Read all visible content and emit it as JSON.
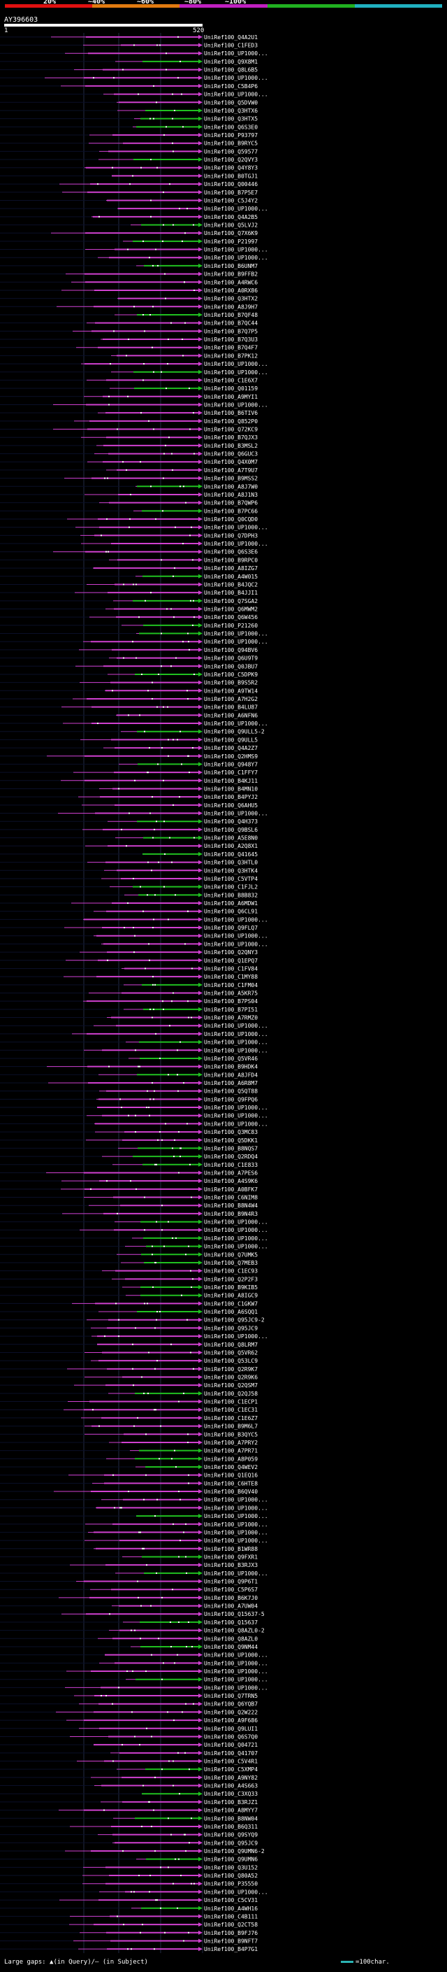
{
  "header": {
    "scale_ticks": [
      "20%",
      "~40%",
      "~60%",
      "~80%",
      "~100%"
    ],
    "scale_colors": [
      "#e01010",
      "#e07a10",
      "#c020c0",
      "#20b020",
      "#20b0c0"
    ],
    "query_name": "AY396603",
    "query_start": "1",
    "query_end": "520"
  },
  "hit_colors": {
    "high": "#20c020",
    "low": "#d040d0"
  },
  "hits": [
    "UniRef100_Q4A2U1",
    "UniRef100_C1FED3",
    "UniRef100_UP1000...",
    "UniRef100_Q9X8M1",
    "UniRef100_Q8L6B5",
    "UniRef100_UP1000...",
    "UniRef100_C5B4P6",
    "UniRef100_UP1000...",
    "UniRef100_Q5DVW0",
    "UniRef100_Q3HTX6",
    "UniRef100_Q3HTX5",
    "UniRef100_Q6S3E0",
    "UniRef100_P93797",
    "UniRef100_B9RYC5",
    "UniRef100_Q59577",
    "UniRef100_Q2QVY3",
    "UniRef100_Q4Y8Y3",
    "UniRef100_B0TGJ1",
    "UniRef100_Q00446",
    "UniRef100_B7P5E7",
    "UniRef100_C5J4Y2",
    "UniRef100_UP1000...",
    "UniRef100_Q4A2B5",
    "UniRef100_Q5LVJ2",
    "UniRef100_Q7X6K9",
    "UniRef100_P21997",
    "UniRef100_UP1000...",
    "UniRef100_UP1000...",
    "UniRef100_B6UNM7",
    "UniRef100_B9FFB2",
    "UniRef100_A4RWC6",
    "UniRef100_A0RX86",
    "UniRef100_Q3HTX2",
    "UniRef100_A8J9H7",
    "UniRef100_B7QF48",
    "UniRef100_B7QC44",
    "UniRef100_B7Q7P5",
    "UniRef100_B7Q3U3",
    "UniRef100_B7Q4F7",
    "UniRef100_B7PK12",
    "UniRef100_UP1000...",
    "UniRef100_UP1000...",
    "UniRef100_C1E6X7",
    "UniRef100_Q01159",
    "UniRef100_A9MYI1",
    "UniRef100_UP1000...",
    "UniRef100_B6TIV6",
    "UniRef100_Q852P0",
    "UniRef100_Q72KC9",
    "UniRef100_B7QJX3",
    "UniRef100_B3MSL2",
    "UniRef100_Q6GUC3",
    "UniRef100_Q4X0M7",
    "UniRef100_A7T9U7",
    "UniRef100_B9MSS2",
    "UniRef100_A8J7W0",
    "UniRef100_A8J1N3",
    "UniRef100_B7QWP6",
    "UniRef100_B7PC66",
    "UniRef100_Q0CQD0",
    "UniRef100_UP1000...",
    "UniRef100_Q7DPH3",
    "UniRef100_UP1000...",
    "UniRef100_Q6S3E6",
    "UniRef100_B9RPC0",
    "UniRef100_A8IZG7",
    "UniRef100_A4W015",
    "UniRef100_B4JQC2",
    "UniRef100_B4JJI1",
    "UniRef100_Q7SGA2",
    "UniRef100_Q6MWM2",
    "UniRef100_Q6W456",
    "UniRef100_P21260",
    "UniRef100_UP1000...",
    "UniRef100_UP1000...",
    "UniRef100_Q94BV6",
    "UniRef100_Q6U9T9",
    "UniRef100_Q0JBU7",
    "UniRef100_C5DPK9",
    "UniRef100_B9S5R2",
    "UniRef100_A9TW14",
    "UniRef100_A7H2G2",
    "UniRef100_B4LU87",
    "UniRef100_A6NFN6",
    "UniRef100_UP1000...",
    "UniRef100_Q9ULL5-2",
    "UniRef100_Q9ULL5",
    "UniRef100_Q4A2Z7",
    "UniRef100_Q2HMS9",
    "UniRef100_Q948Y7",
    "UniRef100_C1FFY7",
    "UniRef100_B4KJ11",
    "UniRef100_B4MN10",
    "UniRef100_B4PYJ2",
    "UniRef100_Q6AHU5",
    "UniRef100_UP1000...",
    "UniRef100_Q4H373",
    "UniRef100_Q9BSL6",
    "UniRef100_A5E8N0",
    "UniRef100_A2Q8X1",
    "UniRef100_Q41645",
    "UniRef100_Q3HTL0",
    "UniRef100_Q3HTK4",
    "UniRef100_C5VTP4",
    "UniRef100_C1FJL2",
    "UniRef100_B8B832",
    "UniRef100_A6MDW1",
    "UniRef100_Q6CL91",
    "UniRef100_UP1000...",
    "UniRef100_Q9FLQ7",
    "UniRef100_UP1000...",
    "UniRef100_UP1000...",
    "UniRef100_Q2QNY3",
    "UniRef100_Q1EPQ7",
    "UniRef100_C1FV84",
    "UniRef100_C1MY88",
    "UniRef100_C1FM04",
    "UniRef100_A5KR75",
    "UniRef100_B7PS04",
    "UniRef100_B7PI51",
    "UniRef100_A7RMZ0",
    "UniRef100_UP1000...",
    "UniRef100_UP1000...",
    "UniRef100_UP1000...",
    "UniRef100_UP1000...",
    "UniRef100_Q5VR46",
    "UniRef100_B9HDK4",
    "UniRef100_A8JFD4",
    "UniRef100_A6R8M7",
    "UniRef100_Q5QT88",
    "UniRef100_Q9FPQ6",
    "UniRef100_UP1000...",
    "UniRef100_UP1000...",
    "UniRef100_UP1000...",
    "UniRef100_Q3MC83",
    "UniRef100_Q5DKK1",
    "UniRef100_B8NQS7",
    "UniRef100_Q2RDQ4",
    "UniRef100_C1E833",
    "UniRef100_A7PES6",
    "UniRef100_A4S9K6",
    "UniRef100_A0BFK7",
    "UniRef100_C6NIM8",
    "UniRef100_B8N4W4",
    "UniRef100_B9N4R3",
    "UniRef100_UP1000...",
    "UniRef100_UP1000...",
    "UniRef100_UP1000...",
    "UniRef100_UP1000...",
    "UniRef100_Q7UMK5",
    "UniRef100_Q7MEB3",
    "UniRef100_C1EC93",
    "UniRef100_Q2P2F3",
    "UniRef100_B9KIB5",
    "UniRef100_A8IGC9",
    "UniRef100_C1GKW7",
    "UniRef100_A6SQQ1",
    "UniRef100_Q95JC9-2",
    "UniRef100_Q95JC9",
    "UniRef100_UP1000...",
    "UniRef100_Q8LRM7",
    "UniRef100_Q5VR62",
    "UniRef100_Q53LC9",
    "UniRef100_Q2R9K7",
    "UniRef100_Q2R9K6",
    "UniRef100_Q2QSM7",
    "UniRef100_Q2QJ58",
    "UniRef100_C1ECP1",
    "UniRef100_C1EC31",
    "UniRef100_C1E6Z7",
    "UniRef100_B9M6L7",
    "UniRef100_B3QYC5",
    "UniRef100_A7PRY2",
    "UniRef100_A7PR71",
    "UniRef100_A8P059",
    "UniRef100_Q4WEV2",
    "UniRef100_Q1EQ16",
    "UniRef100_C6HTE8",
    "UniRef100_B6QV40",
    "UniRef100_UP1000...",
    "UniRef100_UP1000...",
    "UniRef100_UP1000...",
    "UniRef100_UP1000...",
    "UniRef100_UP1000...",
    "UniRef100_UP1000...",
    "UniRef100_B1WR88",
    "UniRef100_Q9FXR1",
    "UniRef100_B3RJX3",
    "UniRef100_UP1000...",
    "UniRef100_Q9P6T1",
    "UniRef100_C5P6S7",
    "UniRef100_B6K7J0",
    "UniRef100_A7UW04",
    "UniRef100_Q15637-5",
    "UniRef100_Q15637",
    "UniRef100_Q8AZL0-2",
    "UniRef100_Q8AZL0",
    "UniRef100_Q9NM44",
    "UniRef100_UP1000...",
    "UniRef100_UP1000...",
    "UniRef100_UP1000...",
    "UniRef100_UP1000...",
    "UniRef100_UP1000...",
    "UniRef100_Q7TRN5",
    "UniRef100_Q6YQB7",
    "UniRef100_Q2W222",
    "UniRef100_A9F686",
    "UniRef100_Q9LUI1",
    "UniRef100_Q6S7Q0",
    "UniRef100_Q04721",
    "UniRef100_Q41707",
    "UniRef100_C5V4R1",
    "UniRef100_C5XMP4",
    "UniRef100_A9NY82",
    "UniRef100_A4S663",
    "UniRef100_C3XQ33",
    "UniRef100_B3RJZ1",
    "UniRef100_A8MYY7",
    "UniRef100_B8NW04",
    "UniRef100_B6Q311",
    "UniRef100_Q9SYQ9",
    "UniRef100_Q95JC9",
    "UniRef100_Q9UMN6-2",
    "UniRef100_Q9UMN6",
    "UniRef100_Q3U152",
    "UniRef100_Q80A52",
    "UniRef100_P35550",
    "UniRef100_UP1000...",
    "UniRef100_C5CV31",
    "UniRef100_A4WH16",
    "UniRef100_C4B111",
    "UniRef100_Q2CT58",
    "UniRef100_B9FJ76",
    "UniRef100_B9NFT7",
    "UniRef100_B4P7G1"
  ],
  "footer": {
    "gaps_text": "Large gaps: ▲(in Query)/— (in Subject)",
    "legend_text": "=100char."
  }
}
